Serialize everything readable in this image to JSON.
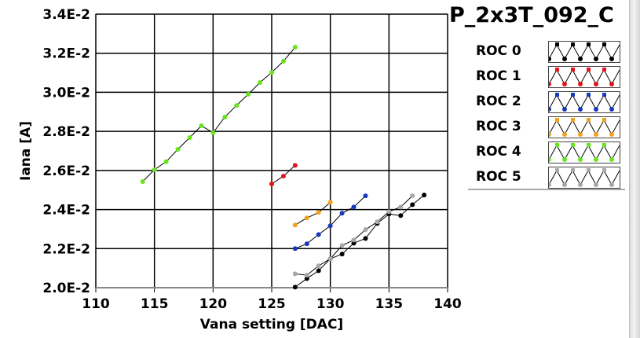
{
  "title": "P_2x3T_092_C",
  "chart_data": {
    "type": "line",
    "title": "P_2x3T_092_C",
    "xlabel": "Vana setting [DAC]",
    "ylabel": "Iana [A]",
    "xlim": [
      110,
      140
    ],
    "ylim": [
      0.02,
      0.034
    ],
    "xticks": [
      110,
      115,
      120,
      125,
      130,
      135,
      140
    ],
    "xtick_labels": [
      "110",
      "115",
      "120",
      "125",
      "130",
      "135",
      "140"
    ],
    "yticks": [
      0.02,
      0.022,
      0.024,
      0.026,
      0.028,
      0.03,
      0.032,
      0.034
    ],
    "ytick_labels": [
      "2.0E-2",
      "2.2E-2",
      "2.4E-2",
      "2.6E-2",
      "2.8E-2",
      "3.0E-2",
      "3.2E-2",
      "3.4E-2"
    ],
    "grid": true,
    "legend_position": "right",
    "series": [
      {
        "name": "ROC 0",
        "color": "#000000",
        "x": [
          127,
          128,
          129,
          130,
          131,
          132,
          133,
          134,
          135,
          136,
          137,
          138
        ],
        "y": [
          0.02003,
          0.02047,
          0.02087,
          0.02148,
          0.02172,
          0.02228,
          0.02252,
          0.02329,
          0.02377,
          0.02369,
          0.02425,
          0.02474
        ]
      },
      {
        "name": "ROC 1",
        "color": "#e8121a",
        "x": [
          125,
          126,
          127
        ],
        "y": [
          0.02531,
          0.02571,
          0.02626
        ]
      },
      {
        "name": "ROC 2",
        "color": "#1638c0",
        "x": [
          127,
          128,
          129,
          130,
          131,
          132,
          133
        ],
        "y": [
          0.022,
          0.02225,
          0.02272,
          0.02317,
          0.02381,
          0.02413,
          0.0247
        ]
      },
      {
        "name": "ROC 3",
        "color": "#f5a01a",
        "x": [
          127,
          128,
          129,
          130
        ],
        "y": [
          0.02321,
          0.02357,
          0.02385,
          0.02437
        ]
      },
      {
        "name": "ROC 4",
        "color": "#66e61a",
        "x": [
          114,
          115,
          116,
          117,
          118,
          119,
          120,
          121,
          122,
          123,
          124,
          125,
          126,
          127
        ],
        "y": [
          0.02543,
          0.02604,
          0.02645,
          0.02708,
          0.02768,
          0.02829,
          0.02793,
          0.02873,
          0.02933,
          0.0299,
          0.0305,
          0.03102,
          0.03159,
          0.03231
        ]
      },
      {
        "name": "ROC 5",
        "color": "#a8a8a8",
        "x": [
          127,
          128,
          129,
          130,
          131,
          132,
          133,
          134,
          135,
          136,
          137
        ],
        "y": [
          0.02071,
          0.02064,
          0.02112,
          0.02148,
          0.02216,
          0.02244,
          0.02297,
          0.02337,
          0.02389,
          0.02413,
          0.0247
        ]
      }
    ]
  }
}
